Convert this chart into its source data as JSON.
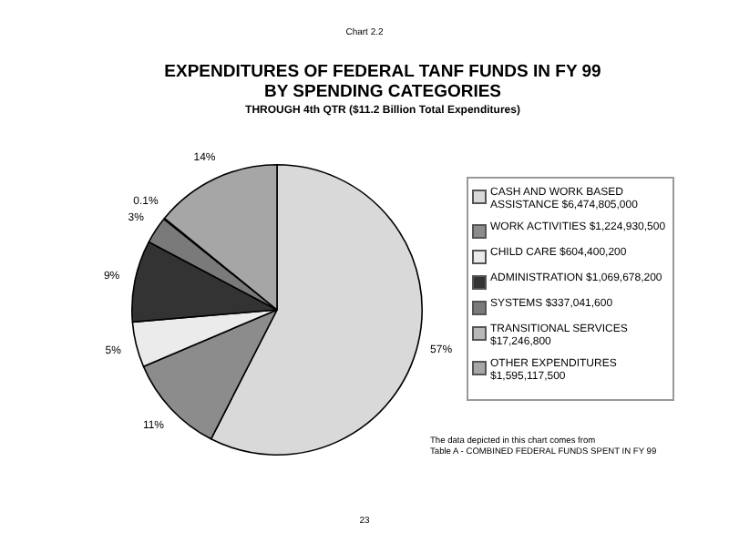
{
  "chart_data": {
    "type": "pie",
    "title": "EXPENDITURES OF FEDERAL TANF FUNDS IN FY 99\nBY SPENDING CATEGORIES",
    "subtitle": "THROUGH 4th QTR  ($11.2  Billion Total Expenditures)",
    "categories": [
      "CASH AND WORK BASED ASSISTANCE  $6,474,805,000",
      "WORK ACTIVITIES  $1,224,930,500",
      "CHILD CARE  $604,400,200",
      "ADMINISTRATION  $1,069,678,200",
      "SYSTEMS  $337,041,600",
      "TRANSITIONAL SERVICES $17,246,800",
      "OTHER EXPENDITURES $1,595,117,500"
    ],
    "values": [
      57,
      11,
      5,
      9,
      3,
      0.1,
      14
    ],
    "value_labels": [
      "57%",
      "11%",
      "5%",
      "9%",
      "3%",
      "0.1%",
      "14%"
    ],
    "colors": [
      "#d9d9d9",
      "#8c8c8c",
      "#ebebeb",
      "#333333",
      "#7a7a7a",
      "#b8b8b8",
      "#a6a6a6"
    ],
    "legend": "right",
    "annotations": [
      "Chart 2.2",
      "The data depicted in this chart comes from\nTable A - COMBINED FEDERAL FUNDS SPENT IN FY 99",
      "23"
    ]
  }
}
